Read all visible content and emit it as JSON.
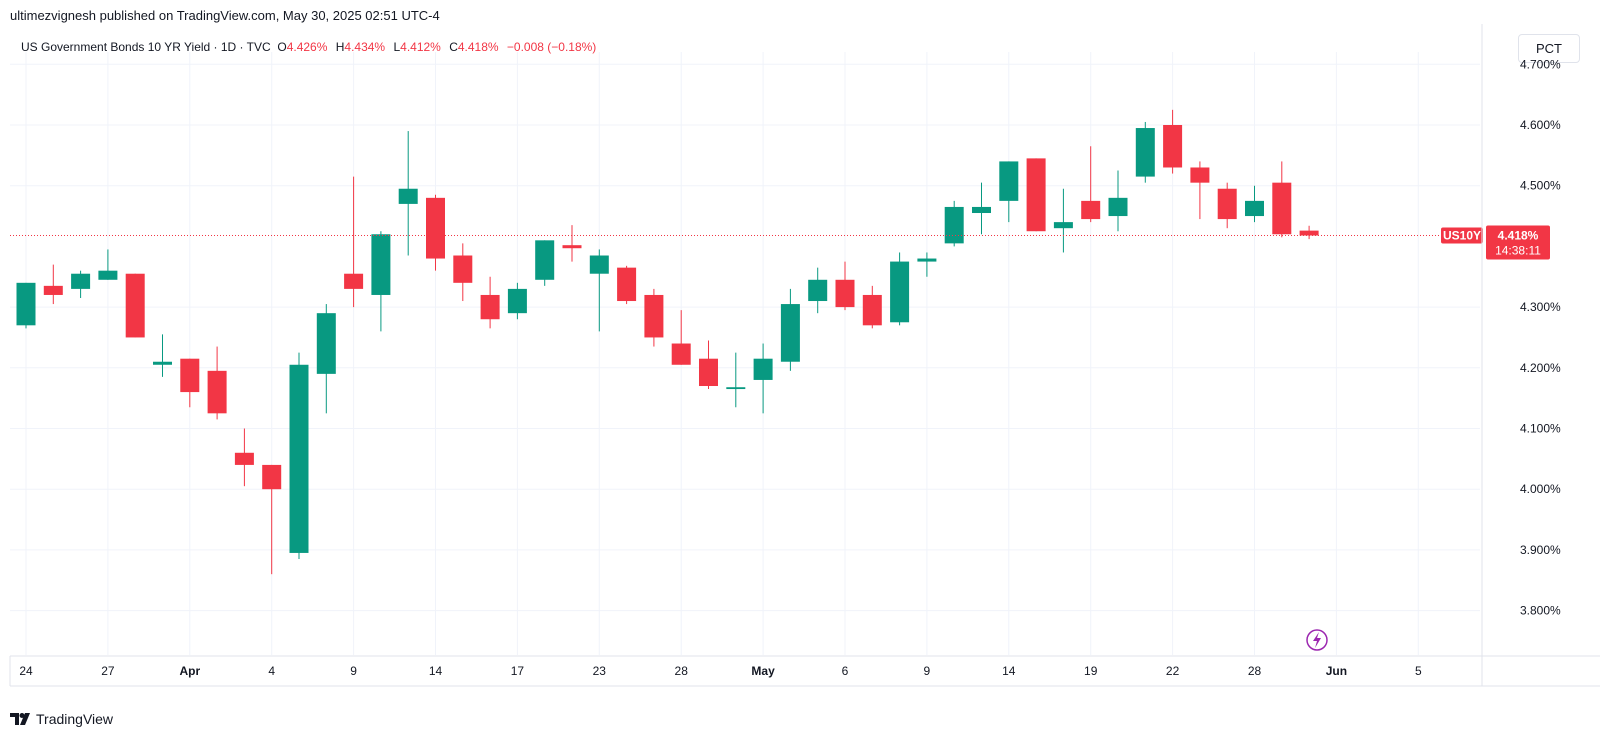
{
  "publisher_line": "ultimezvignesh published on TradingView.com, May 30, 2025 02:51 UTC-4",
  "legend": {
    "symbol": "US Government Bonds 10 YR Yield · 1D · TVC",
    "o_label": "O",
    "o_value": "4.426%",
    "h_label": "H",
    "h_value": "4.434%",
    "l_label": "L",
    "l_value": "4.412%",
    "c_label": "C",
    "c_value": "4.418%",
    "change": "−0.008 (−0.18%)"
  },
  "pct_button": "PCT",
  "price_tag": {
    "symbol": "US10Y",
    "price": "4.418%",
    "countdown": "14:38:11",
    "color": "#f23645"
  },
  "footer": "TradingView",
  "colors": {
    "up": "#089981",
    "down": "#f23645",
    "grid": "#f0f3fa"
  },
  "chart_data": {
    "type": "candlestick",
    "ylim": [
      3.8,
      4.7
    ],
    "y_ticks": [
      "4.700%",
      "4.600%",
      "4.500%",
      "4.300%",
      "4.200%",
      "4.100%",
      "4.000%",
      "3.900%",
      "3.800%"
    ],
    "y_tick_values": [
      4.7,
      4.6,
      4.5,
      4.3,
      4.2,
      4.1,
      4.0,
      3.9,
      3.8
    ],
    "x_ticks": [
      {
        "label": "24",
        "index": 0,
        "bold": false
      },
      {
        "label": "27",
        "index": 3,
        "bold": false
      },
      {
        "label": "Apr",
        "index": 6,
        "bold": true
      },
      {
        "label": "4",
        "index": 9,
        "bold": false
      },
      {
        "label": "9",
        "index": 12,
        "bold": false
      },
      {
        "label": "14",
        "index": 15,
        "bold": false
      },
      {
        "label": "17",
        "index": 18,
        "bold": false
      },
      {
        "label": "23",
        "index": 21,
        "bold": false
      },
      {
        "label": "28",
        "index": 24,
        "bold": false
      },
      {
        "label": "May",
        "index": 27,
        "bold": true
      },
      {
        "label": "6",
        "index": 30,
        "bold": false
      },
      {
        "label": "9",
        "index": 33,
        "bold": false
      },
      {
        "label": "14",
        "index": 36,
        "bold": false
      },
      {
        "label": "19",
        "index": 39,
        "bold": false
      },
      {
        "label": "22",
        "index": 42,
        "bold": false
      },
      {
        "label": "28",
        "index": 45,
        "bold": false
      },
      {
        "label": "Jun",
        "index": 48,
        "bold": true
      },
      {
        "label": "5",
        "index": 51,
        "bold": false
      }
    ],
    "candles": [
      {
        "o": 4.27,
        "h": 4.34,
        "l": 4.265,
        "c": 4.34
      },
      {
        "o": 4.335,
        "h": 4.37,
        "l": 4.305,
        "c": 4.32
      },
      {
        "o": 4.33,
        "h": 4.36,
        "l": 4.315,
        "c": 4.355
      },
      {
        "o": 4.345,
        "h": 4.395,
        "l": 4.345,
        "c": 4.36
      },
      {
        "o": 4.355,
        "h": 4.355,
        "l": 4.25,
        "c": 4.25
      },
      {
        "o": 4.205,
        "h": 4.255,
        "l": 4.185,
        "c": 4.21
      },
      {
        "o": 4.215,
        "h": 4.215,
        "l": 4.135,
        "c": 4.16
      },
      {
        "o": 4.195,
        "h": 4.235,
        "l": 4.115,
        "c": 4.125
      },
      {
        "o": 4.06,
        "h": 4.1,
        "l": 4.005,
        "c": 4.04
      },
      {
        "o": 4.04,
        "h": 4.04,
        "l": 3.86,
        "c": 4.0
      },
      {
        "o": 3.895,
        "h": 4.225,
        "l": 3.885,
        "c": 4.205
      },
      {
        "o": 4.19,
        "h": 4.305,
        "l": 4.125,
        "c": 4.29
      },
      {
        "o": 4.355,
        "h": 4.515,
        "l": 4.3,
        "c": 4.33
      },
      {
        "o": 4.32,
        "h": 4.425,
        "l": 4.26,
        "c": 4.42
      },
      {
        "o": 4.47,
        "h": 4.59,
        "l": 4.385,
        "c": 4.495
      },
      {
        "o": 4.48,
        "h": 4.485,
        "l": 4.36,
        "c": 4.38
      },
      {
        "o": 4.385,
        "h": 4.405,
        "l": 4.31,
        "c": 4.34
      },
      {
        "o": 4.32,
        "h": 4.35,
        "l": 4.265,
        "c": 4.28
      },
      {
        "o": 4.29,
        "h": 4.34,
        "l": 4.28,
        "c": 4.33
      },
      {
        "o": 4.345,
        "h": 4.41,
        "l": 4.335,
        "c": 4.41
      },
      {
        "o": 4.402,
        "h": 4.435,
        "l": 4.375,
        "c": 4.397
      },
      {
        "o": 4.355,
        "h": 4.395,
        "l": 4.26,
        "c": 4.385
      },
      {
        "o": 4.365,
        "h": 4.368,
        "l": 4.305,
        "c": 4.31
      },
      {
        "o": 4.32,
        "h": 4.33,
        "l": 4.235,
        "c": 4.25
      },
      {
        "o": 4.24,
        "h": 4.295,
        "l": 4.205,
        "c": 4.205
      },
      {
        "o": 4.215,
        "h": 4.245,
        "l": 4.165,
        "c": 4.17
      },
      {
        "o": 4.165,
        "h": 4.225,
        "l": 4.135,
        "c": 4.168
      },
      {
        "o": 4.18,
        "h": 4.24,
        "l": 4.125,
        "c": 4.215
      },
      {
        "o": 4.21,
        "h": 4.33,
        "l": 4.195,
        "c": 4.305
      },
      {
        "o": 4.31,
        "h": 4.365,
        "l": 4.29,
        "c": 4.345
      },
      {
        "o": 4.345,
        "h": 4.375,
        "l": 4.295,
        "c": 4.3
      },
      {
        "o": 4.32,
        "h": 4.335,
        "l": 4.265,
        "c": 4.27
      },
      {
        "o": 4.275,
        "h": 4.39,
        "l": 4.27,
        "c": 4.375
      },
      {
        "o": 4.375,
        "h": 4.39,
        "l": 4.35,
        "c": 4.38
      },
      {
        "o": 4.405,
        "h": 4.475,
        "l": 4.4,
        "c": 4.465
      },
      {
        "o": 4.455,
        "h": 4.505,
        "l": 4.42,
        "c": 4.465
      },
      {
        "o": 4.475,
        "h": 4.54,
        "l": 4.44,
        "c": 4.54
      },
      {
        "o": 4.545,
        "h": 4.545,
        "l": 4.425,
        "c": 4.425
      },
      {
        "o": 4.43,
        "h": 4.495,
        "l": 4.39,
        "c": 4.44
      },
      {
        "o": 4.475,
        "h": 4.565,
        "l": 4.44,
        "c": 4.445
      },
      {
        "o": 4.45,
        "h": 4.525,
        "l": 4.425,
        "c": 4.48
      },
      {
        "o": 4.515,
        "h": 4.605,
        "l": 4.505,
        "c": 4.595
      },
      {
        "o": 4.6,
        "h": 4.625,
        "l": 4.52,
        "c": 4.53
      },
      {
        "o": 4.53,
        "h": 4.54,
        "l": 4.445,
        "c": 4.505
      },
      {
        "o": 4.495,
        "h": 4.505,
        "l": 4.43,
        "c": 4.445
      },
      {
        "o": 4.45,
        "h": 4.5,
        "l": 4.44,
        "c": 4.475
      },
      {
        "o": 4.505,
        "h": 4.54,
        "l": 4.415,
        "c": 4.42
      },
      {
        "o": 4.426,
        "h": 4.434,
        "l": 4.412,
        "c": 4.418
      }
    ]
  }
}
